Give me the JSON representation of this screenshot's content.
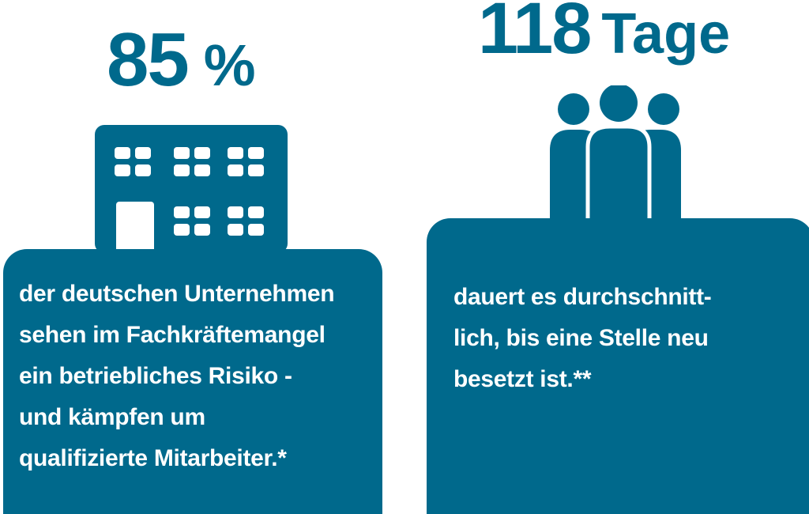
{
  "colors": {
    "accent": "#00698c",
    "background": "#ffffff",
    "text_on_accent": "#ffffff"
  },
  "left": {
    "stat_value": "85",
    "stat_unit": "%",
    "icon": "office-building-icon",
    "caption_lines": [
      "der deutschen Unternehmen",
      "sehen im Fachkräftemangel",
      "ein betriebliches Risiko -",
      "und kämpfen um",
      "qualifizierte Mitarbeiter.*"
    ]
  },
  "right": {
    "stat_value": "118",
    "stat_unit": "Tage",
    "icon": "people-group-icon",
    "caption_lines": [
      "dauert es durchschnitt-",
      "lich, bis eine Stelle neu",
      "besetzt ist.**"
    ]
  }
}
